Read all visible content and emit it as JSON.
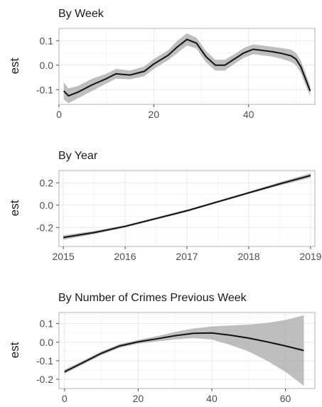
{
  "chart_data": [
    {
      "type": "line",
      "title": "By Week",
      "ylabel": "est",
      "xlabel": "",
      "xlim": [
        0,
        54
      ],
      "ylim": [
        -0.16,
        0.15
      ],
      "xticks": [
        0,
        20,
        40
      ],
      "yticks": [
        -0.1,
        0.0,
        0.1
      ],
      "ytick_labels": [
        "-0.1",
        "0.0",
        "0.1"
      ],
      "grid": true,
      "series": [
        {
          "x": [
            1,
            2,
            4,
            7,
            10,
            12,
            15,
            18,
            20,
            23,
            25,
            27,
            29,
            31,
            33,
            35,
            37,
            39,
            41,
            43,
            45,
            47,
            49,
            50,
            51,
            52,
            53
          ],
          "y": [
            -0.105,
            -0.125,
            -0.11,
            -0.08,
            -0.055,
            -0.035,
            -0.04,
            -0.025,
            0.005,
            0.04,
            0.075,
            0.105,
            0.09,
            0.035,
            0.0,
            0.0,
            0.025,
            0.05,
            0.065,
            0.06,
            0.055,
            0.048,
            0.038,
            0.025,
            -0.005,
            -0.055,
            -0.105
          ],
          "lower": [
            -0.14,
            -0.155,
            -0.135,
            -0.105,
            -0.075,
            -0.055,
            -0.058,
            -0.045,
            -0.015,
            0.02,
            0.05,
            0.08,
            0.068,
            0.012,
            -0.022,
            -0.022,
            0.005,
            0.03,
            0.045,
            0.04,
            0.035,
            0.026,
            0.013,
            0.0,
            -0.03,
            -0.08,
            -0.125
          ],
          "upper": [
            -0.07,
            -0.095,
            -0.085,
            -0.055,
            -0.035,
            -0.015,
            -0.022,
            -0.005,
            0.025,
            0.06,
            0.1,
            0.13,
            0.112,
            0.058,
            0.022,
            0.022,
            0.045,
            0.07,
            0.085,
            0.08,
            0.075,
            0.07,
            0.063,
            0.05,
            0.02,
            -0.03,
            -0.085
          ]
        }
      ]
    },
    {
      "type": "line",
      "title": "By Year",
      "ylabel": "est",
      "xlabel": "",
      "xlim": [
        2014.93,
        2019.07
      ],
      "ylim": [
        -0.37,
        0.31
      ],
      "xticks": [
        2015,
        2016,
        2017,
        2018,
        2019
      ],
      "yticks": [
        -0.2,
        0.0,
        0.2
      ],
      "ytick_labels": [
        "-0.2",
        "0.0",
        "0.2"
      ],
      "grid": true,
      "series": [
        {
          "x": [
            2015,
            2015.5,
            2016,
            2016.5,
            2017,
            2017.5,
            2018,
            2018.5,
            2019
          ],
          "y": [
            -0.29,
            -0.245,
            -0.19,
            -0.12,
            -0.05,
            0.03,
            0.11,
            0.19,
            0.265
          ],
          "lower": [
            -0.31,
            -0.26,
            -0.2,
            -0.13,
            -0.06,
            0.02,
            0.1,
            0.175,
            0.245
          ],
          "upper": [
            -0.27,
            -0.23,
            -0.18,
            -0.11,
            -0.04,
            0.04,
            0.12,
            0.205,
            0.285
          ]
        }
      ]
    },
    {
      "type": "line",
      "title": "By Number of Crimes Previous Week",
      "ylabel": "est",
      "xlabel": "",
      "xlim": [
        -1.5,
        68
      ],
      "ylim": [
        -0.25,
        0.16
      ],
      "xticks": [
        0,
        20,
        40,
        60
      ],
      "yticks": [
        -0.2,
        -0.1,
        0.0,
        0.1
      ],
      "ytick_labels": [
        "-0.2",
        "-0.1",
        "0.0",
        "0.1"
      ],
      "grid": true,
      "series": [
        {
          "x": [
            0,
            5,
            10,
            15,
            20,
            25,
            30,
            35,
            40,
            45,
            50,
            55,
            60,
            65
          ],
          "y": [
            -0.16,
            -0.11,
            -0.06,
            -0.02,
            0.002,
            0.018,
            0.035,
            0.048,
            0.05,
            0.038,
            0.022,
            0.002,
            -0.02,
            -0.045
          ],
          "lower": [
            -0.17,
            -0.12,
            -0.07,
            -0.03,
            -0.008,
            0.004,
            0.015,
            0.022,
            0.015,
            -0.015,
            -0.05,
            -0.1,
            -0.16,
            -0.235
          ],
          "upper": [
            -0.148,
            -0.1,
            -0.05,
            -0.01,
            0.012,
            0.032,
            0.055,
            0.074,
            0.085,
            0.09,
            0.095,
            0.104,
            0.12,
            0.145
          ]
        }
      ]
    }
  ]
}
